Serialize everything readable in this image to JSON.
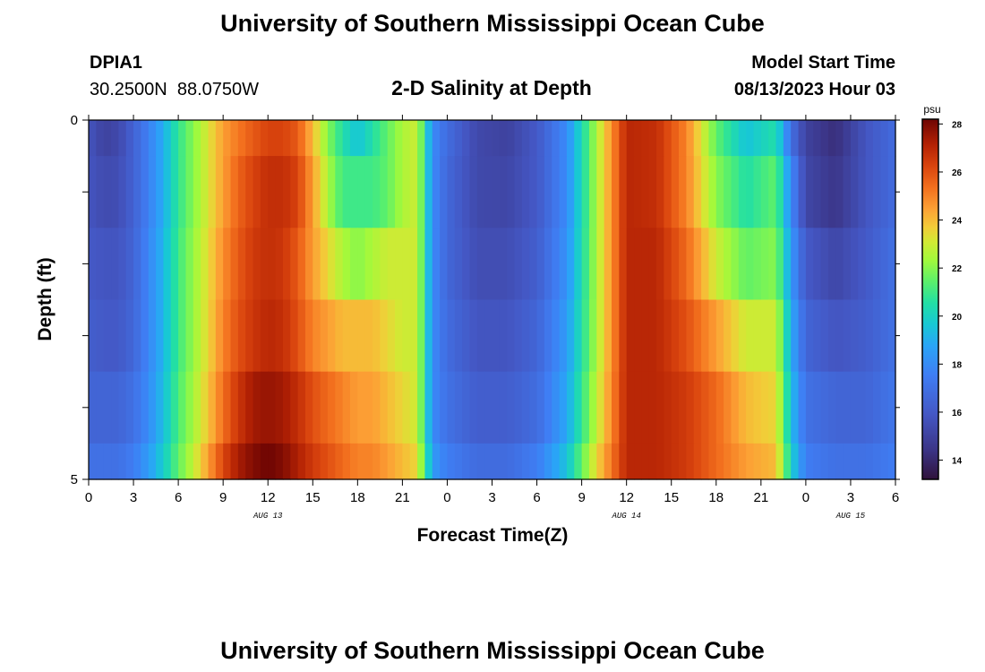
{
  "header": {
    "title": "University of Southern Mississippi Ocean Cube",
    "station_id": "DPIA1",
    "coordinates": "30.2500N  88.0750W",
    "plot_title": "2-D Salinity at Depth",
    "model_start_label": "Model Start Time",
    "model_start_value": "08/13/2023 Hour 03"
  },
  "footer": {
    "title": "University of Southern Mississippi Ocean Cube"
  },
  "chart_data": {
    "type": "heatmap",
    "title": "2-D Salinity at Depth",
    "xlabel": "Forecast Time(Z)",
    "ylabel": "Depth (ft)",
    "x_ticks": [
      "0",
      "3",
      "6",
      "9",
      "12",
      "15",
      "18",
      "21",
      "0",
      "3",
      "6",
      "9",
      "12",
      "15",
      "18",
      "21",
      "0",
      "3",
      "6"
    ],
    "x_tick_hours": [
      0,
      3,
      6,
      9,
      12,
      15,
      18,
      21,
      24,
      27,
      30,
      33,
      36,
      39,
      42,
      45,
      48,
      51,
      54
    ],
    "x_range": [
      0,
      54
    ],
    "y_ticks": [
      "0",
      "5"
    ],
    "y_range": [
      0,
      5
    ],
    "day_labels": [
      {
        "label": "AUG 13",
        "hour": 12
      },
      {
        "label": "AUG 14",
        "hour": 36
      },
      {
        "label": "AUG 15",
        "hour": 51
      }
    ],
    "colorbar": {
      "unit": "psu",
      "range": [
        13.2,
        28.2
      ],
      "ticks": [
        "14",
        "16",
        "18",
        "20",
        "22",
        "24",
        "26",
        "28"
      ],
      "tick_values": [
        14,
        16,
        18,
        20,
        22,
        24,
        26,
        28
      ]
    },
    "depth_bins": [
      0,
      0.5,
      1.5,
      2.5,
      3.5,
      4.5,
      5
    ],
    "time_keyframes": [
      0,
      1,
      2,
      3,
      4,
      5,
      6,
      7,
      8,
      9,
      10,
      11,
      12,
      13,
      14,
      15,
      16,
      17,
      18,
      19,
      20,
      21,
      22,
      23,
      24,
      26,
      28,
      30,
      32,
      34,
      36,
      38,
      40,
      42,
      44,
      46,
      47,
      48,
      50,
      52,
      54
    ],
    "salinity_layers": [
      [
        15.8,
        15.0,
        15.3,
        16.4,
        17.6,
        19.0,
        20.8,
        22.0,
        23.2,
        24.5,
        25.2,
        25.8,
        26.3,
        26.3,
        25.8,
        24.0,
        22.0,
        20.5,
        19.5,
        20.5,
        21.5,
        22.5,
        23.0,
        18.0,
        16.8,
        15.3,
        15.0,
        16.0,
        18.0,
        22.5,
        27.0,
        26.8,
        25.0,
        21.5,
        19.5,
        20.5,
        17.0,
        15.0,
        14.2,
        15.8,
        16.8
      ],
      [
        15.8,
        15.4,
        15.5,
        16.4,
        17.6,
        19.0,
        20.8,
        22.0,
        23.2,
        24.5,
        25.6,
        26.3,
        26.8,
        26.8,
        26.3,
        24.5,
        22.5,
        21.0,
        21.0,
        21.0,
        21.5,
        22.5,
        23.0,
        18.0,
        16.6,
        15.3,
        15.2,
        16.0,
        18.0,
        22.5,
        27.0,
        26.8,
        25.0,
        22.0,
        20.5,
        21.5,
        18.0,
        15.2,
        14.5,
        15.8,
        16.8
      ],
      [
        16.0,
        15.8,
        15.8,
        16.5,
        17.8,
        19.2,
        21.0,
        22.2,
        23.4,
        24.8,
        25.8,
        26.5,
        26.8,
        26.6,
        25.8,
        24.5,
        23.5,
        22.5,
        22.0,
        22.5,
        23.0,
        23.0,
        23.0,
        18.0,
        16.6,
        15.5,
        15.5,
        16.2,
        18.2,
        22.5,
        27.0,
        27.0,
        25.5,
        23.0,
        21.5,
        22.0,
        18.5,
        16.0,
        15.2,
        16.0,
        17.0
      ],
      [
        16.2,
        16.0,
        16.0,
        16.6,
        17.8,
        19.2,
        21.0,
        22.2,
        23.5,
        25.0,
        26.0,
        26.6,
        27.0,
        26.8,
        26.0,
        25.0,
        24.5,
        24.0,
        24.0,
        24.0,
        23.5,
        23.0,
        23.0,
        18.0,
        16.8,
        15.8,
        15.8,
        16.5,
        18.5,
        22.5,
        27.0,
        27.0,
        26.0,
        24.5,
        23.0,
        23.0,
        19.0,
        16.5,
        15.8,
        16.2,
        17.0
      ],
      [
        16.5,
        16.5,
        16.5,
        17.0,
        18.0,
        19.4,
        21.2,
        22.4,
        23.8,
        25.4,
        26.6,
        27.4,
        27.6,
        27.4,
        26.8,
        26.0,
        25.5,
        25.0,
        24.5,
        24.5,
        24.0,
        23.5,
        23.0,
        18.0,
        17.0,
        16.2,
        16.2,
        16.8,
        18.8,
        22.8,
        27.0,
        27.0,
        26.5,
        25.5,
        24.0,
        23.5,
        19.5,
        17.0,
        16.5,
        16.5,
        17.2
      ],
      [
        17.0,
        17.0,
        17.0,
        17.5,
        18.5,
        19.8,
        21.5,
        22.8,
        24.5,
        26.2,
        27.3,
        27.9,
        28.2,
        27.9,
        27.2,
        26.5,
        26.0,
        25.5,
        25.0,
        25.0,
        24.5,
        24.0,
        23.5,
        18.5,
        17.5,
        16.8,
        16.8,
        17.5,
        19.5,
        23.5,
        27.0,
        27.0,
        26.5,
        25.5,
        24.5,
        24.0,
        20.0,
        17.5,
        17.0,
        17.0,
        17.5
      ]
    ]
  }
}
